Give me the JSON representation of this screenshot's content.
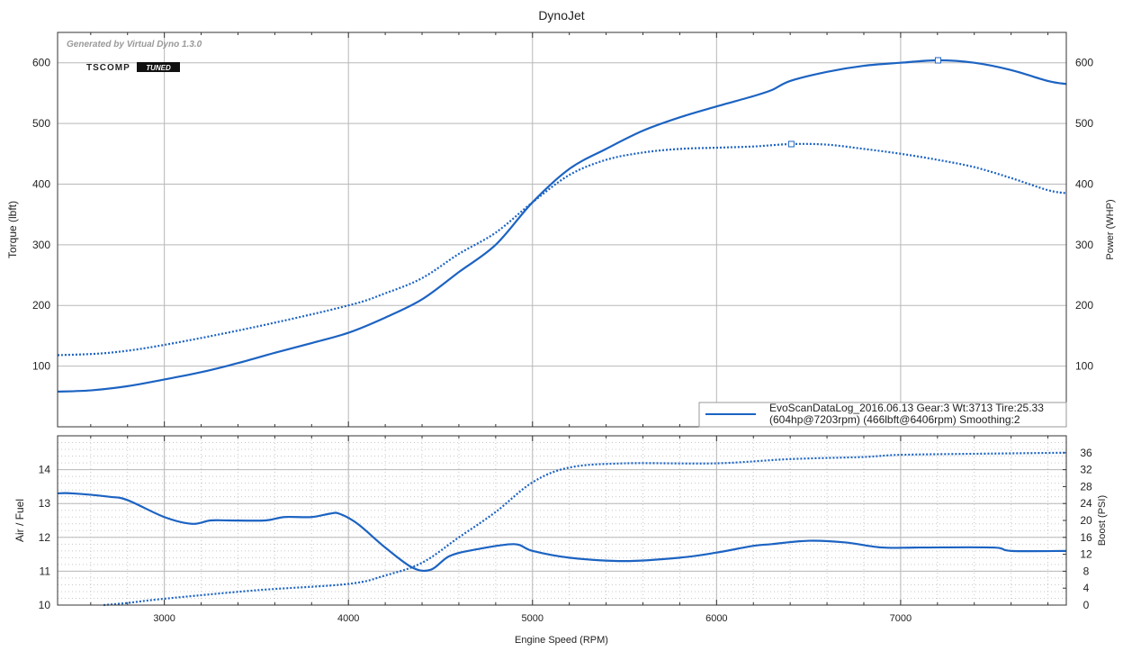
{
  "chart_data": [
    {
      "type": "line",
      "title": "DynoJet",
      "watermark": "Generated by Virtual Dyno 1.3.0",
      "logo": "TSCOMP TUNED",
      "ylabel": "Torque (lbft)",
      "y2label": "Power (WHP)",
      "xlim": [
        2420,
        7900
      ],
      "ylim": [
        0,
        650
      ],
      "xticks": [
        3000,
        4000,
        5000,
        6000,
        7000
      ],
      "yticks": [
        100,
        200,
        300,
        400,
        500,
        600
      ],
      "grid": true,
      "legend": {
        "placement": "bottom-right",
        "line1": "EvoScanDataLog_2016.06.13 Gear:3 Wt:3713 Tire:25.33",
        "line2": "(604hp@7203rpm) (466lbft@6406rpm) Smoothing:2"
      },
      "series": [
        {
          "name": "Power (WHP)",
          "style": "solid",
          "color": "#1c63c2",
          "peak": [
            7203,
            604
          ],
          "x": [
            2420,
            2600,
            2800,
            3000,
            3200,
            3400,
            3600,
            3800,
            4000,
            4200,
            4400,
            4600,
            4800,
            5000,
            5200,
            5400,
            5600,
            5800,
            6000,
            6200,
            6300,
            6400,
            6600,
            6800,
            7000,
            7203,
            7400,
            7600,
            7800,
            7900
          ],
          "y": [
            58,
            60,
            67,
            78,
            90,
            105,
            122,
            138,
            155,
            180,
            210,
            255,
            300,
            370,
            425,
            458,
            488,
            510,
            528,
            545,
            555,
            570,
            585,
            595,
            600,
            604,
            600,
            588,
            570,
            565
          ]
        },
        {
          "name": "Torque (lbft)",
          "style": "dotted",
          "color": "#1c63c2",
          "peak": [
            6406,
            466
          ],
          "x": [
            2420,
            2700,
            3000,
            3500,
            4000,
            4200,
            4400,
            4600,
            4800,
            5000,
            5200,
            5400,
            5600,
            5800,
            6000,
            6200,
            6406,
            6600,
            6800,
            7000,
            7200,
            7400,
            7600,
            7800,
            7900
          ],
          "y": [
            118,
            122,
            135,
            165,
            200,
            220,
            245,
            285,
            320,
            370,
            415,
            440,
            452,
            458,
            460,
            462,
            466,
            465,
            458,
            450,
            440,
            428,
            410,
            390,
            385
          ]
        }
      ]
    },
    {
      "type": "line",
      "xlabel": "Engine Speed (RPM)",
      "ylabel": "Air / Fuel",
      "y2label": "Boost (PSI)",
      "xlim": [
        2420,
        7900
      ],
      "ylim": [
        10,
        15
      ],
      "y2lim": [
        0,
        40
      ],
      "xticks": [
        3000,
        4000,
        5000,
        6000,
        7000
      ],
      "yticks": [
        10,
        11,
        12,
        13,
        14
      ],
      "y2ticks": [
        0,
        4,
        8,
        12,
        16,
        20,
        24,
        28,
        32,
        36
      ],
      "grid": true,
      "series": [
        {
          "name": "Air / Fuel",
          "style": "solid",
          "color": "#1c63c2",
          "axis": "left",
          "x": [
            2420,
            2500,
            2700,
            2800,
            3000,
            3150,
            3250,
            3350,
            3550,
            3650,
            3800,
            3900,
            3950,
            4050,
            4200,
            4350,
            4450,
            4550,
            4700,
            4900,
            5000,
            5200,
            5500,
            5800,
            6000,
            6200,
            6300,
            6500,
            6700,
            6900,
            7100,
            7500,
            7600,
            7900
          ],
          "y": [
            13.3,
            13.3,
            13.2,
            13.1,
            12.6,
            12.4,
            12.5,
            12.5,
            12.5,
            12.6,
            12.6,
            12.7,
            12.7,
            12.4,
            11.7,
            11.1,
            11.05,
            11.45,
            11.65,
            11.8,
            11.6,
            11.4,
            11.3,
            11.4,
            11.55,
            11.75,
            11.8,
            11.9,
            11.85,
            11.7,
            11.7,
            11.7,
            11.6,
            11.6
          ]
        },
        {
          "name": "Boost (PSI)",
          "style": "dotted",
          "color": "#1c63c2",
          "axis": "right",
          "x": [
            2670,
            2800,
            3000,
            3500,
            4000,
            4200,
            4400,
            4600,
            4800,
            5000,
            5200,
            5500,
            6000,
            6400,
            6800,
            7000,
            7500,
            7900
          ],
          "y": [
            0,
            0.5,
            1.5,
            3.5,
            5,
            7,
            10,
            16,
            22,
            29,
            32.5,
            33.5,
            33.5,
            34.5,
            35,
            35.5,
            35.8,
            36
          ]
        }
      ]
    }
  ]
}
